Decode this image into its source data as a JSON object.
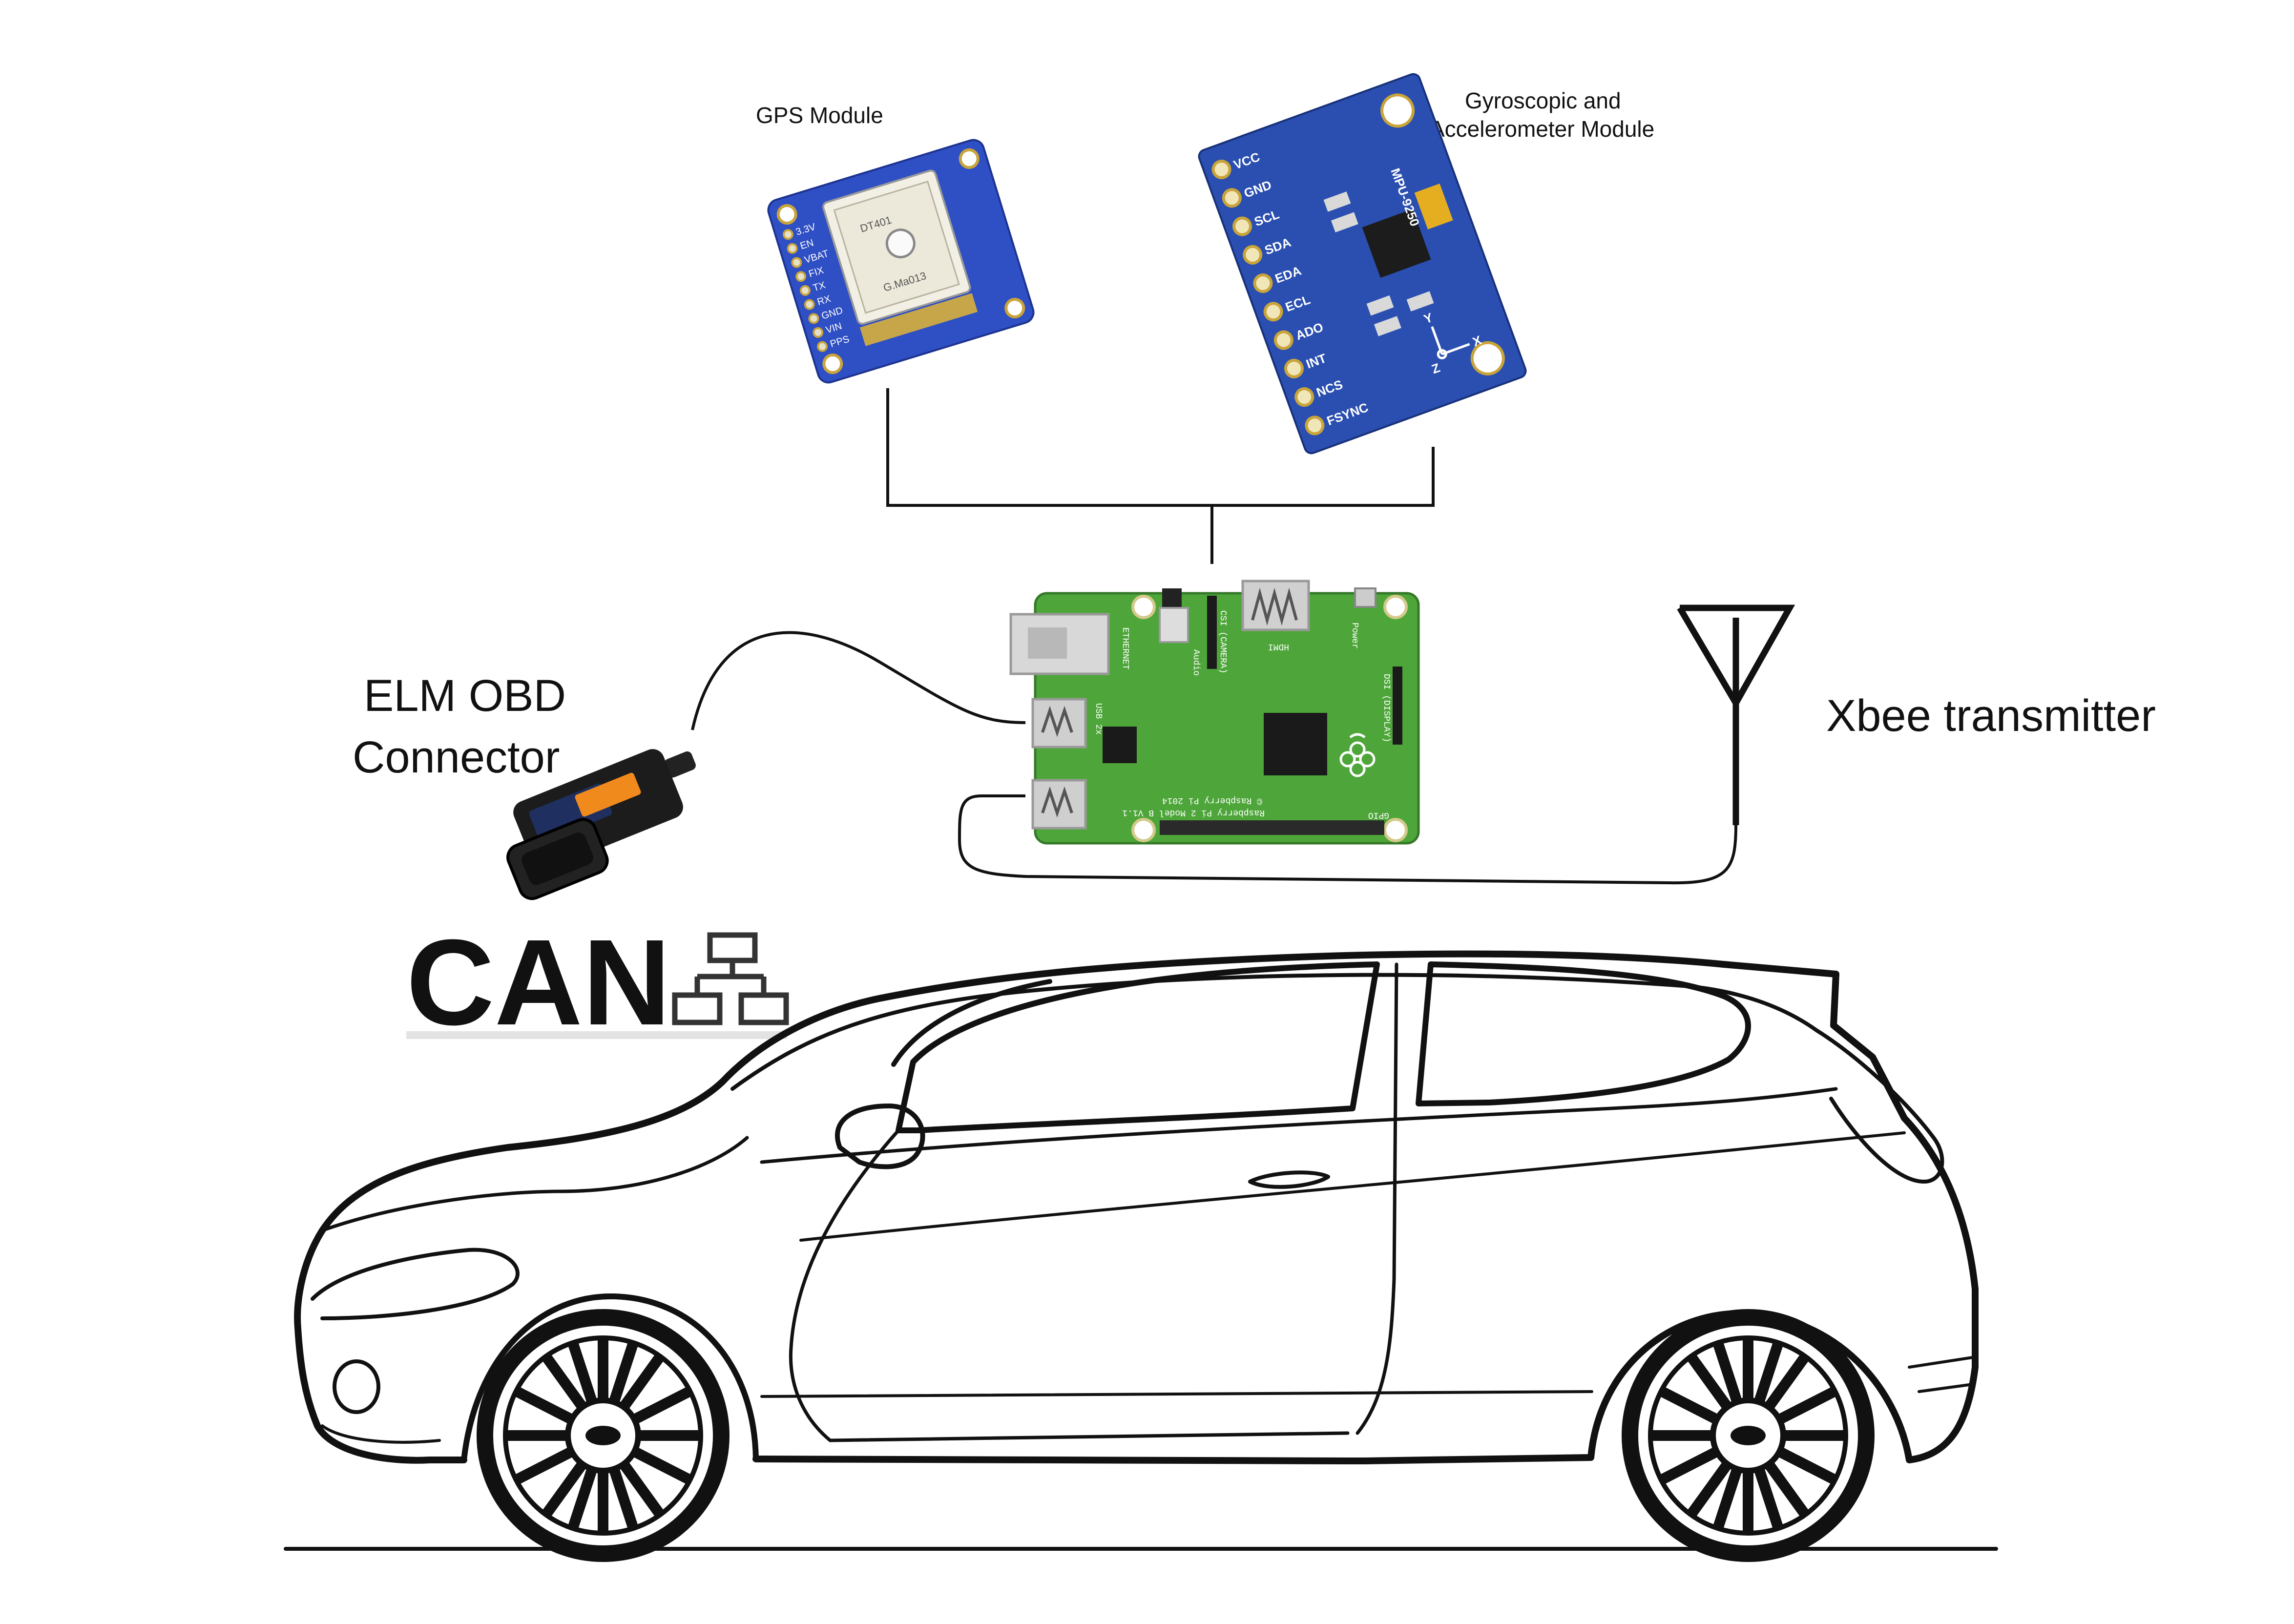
{
  "labels": {
    "gps_module": "GPS Module",
    "gyro_line1": "Gyroscopic and",
    "gyro_line2": "Accelerometer Module",
    "elm_line1": "ELM OBD",
    "elm_line2": "Connector",
    "xbee": "Xbee transmitter",
    "can": "CAN"
  },
  "gps_board": {
    "pins": [
      "3.3V",
      "EN",
      "VBAT",
      "FIX",
      "TX",
      "RX",
      "GND",
      "VIN",
      "PPS"
    ],
    "chip_line1": "DT401",
    "chip_line2": "G.Ma013"
  },
  "imu_board": {
    "pins": [
      "VCC",
      "GND",
      "SCL",
      "SDA",
      "EDA",
      "ECL",
      "ADO",
      "INT",
      "NCS",
      "FSYNC"
    ],
    "model": "MPU-9250",
    "axis_x": "X",
    "axis_y": "Y",
    "axis_z": "Z"
  },
  "pi_board": {
    "model_text": "Raspberry Pi 2 Model B V1.1",
    "copyright_text": "© Raspberry Pi 2014",
    "hdmi": "HDMI",
    "ethernet": "ETHERNET",
    "usb": "USB 2x",
    "audio": "Audio",
    "camera": "CSI (CAMERA)",
    "display": "DSI (DISPLAY)",
    "power": "Power",
    "gpio": "GPIO"
  },
  "colors": {
    "gps_board": "#2f4fc4",
    "imu_board": "#2a4fb0",
    "pi_board": "#4ea63a",
    "obd_accent": "#f08a1c",
    "line": "#111111"
  }
}
